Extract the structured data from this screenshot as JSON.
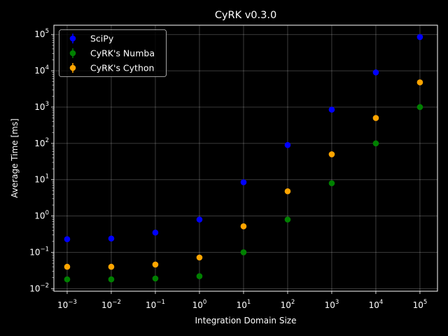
{
  "chart_data": {
    "type": "scatter",
    "title": "CyRK v0.3.0",
    "xlabel": "Integration Domain Size",
    "ylabel": "Average Time [ms]",
    "xscale": "log",
    "yscale": "log",
    "xlim": [
      0.0005,
      250000
    ],
    "ylim": [
      0.0085,
      180000
    ],
    "grid": true,
    "legend_position": "top-left",
    "x": [
      0.001,
      0.01,
      0.1,
      1,
      10,
      100,
      1000,
      10000,
      100000
    ],
    "x_tick_labels": [
      {
        "base": "10",
        "exp": "−3"
      },
      {
        "base": "10",
        "exp": "−2"
      },
      {
        "base": "10",
        "exp": "−1"
      },
      {
        "base": "10",
        "exp": "0"
      },
      {
        "base": "10",
        "exp": "1"
      },
      {
        "base": "10",
        "exp": "2"
      },
      {
        "base": "10",
        "exp": "3"
      },
      {
        "base": "10",
        "exp": "4"
      },
      {
        "base": "10",
        "exp": "5"
      }
    ],
    "y_ticks": [
      0.01,
      0.1,
      1,
      10,
      100,
      1000,
      10000,
      100000
    ],
    "y_tick_labels": [
      {
        "base": "10",
        "exp": "−2"
      },
      {
        "base": "10",
        "exp": "−1"
      },
      {
        "base": "10",
        "exp": "0"
      },
      {
        "base": "10",
        "exp": "1"
      },
      {
        "base": "10",
        "exp": "2"
      },
      {
        "base": "10",
        "exp": "3"
      },
      {
        "base": "10",
        "exp": "4"
      },
      {
        "base": "10",
        "exp": "5"
      }
    ],
    "series": [
      {
        "name": "SciPy",
        "color": "#0000ff",
        "values": [
          0.23,
          0.24,
          0.35,
          0.8,
          8.5,
          90,
          850,
          9000,
          85000
        ]
      },
      {
        "name": "CyRK's Numba",
        "color": "#008000",
        "values": [
          0.018,
          0.018,
          0.019,
          0.022,
          0.1,
          0.8,
          8.0,
          100,
          1000
        ]
      },
      {
        "name": "CyRK's Cython",
        "color": "#ffa500",
        "values": [
          0.04,
          0.04,
          0.046,
          0.072,
          0.52,
          4.8,
          50,
          500,
          4800
        ]
      }
    ]
  }
}
